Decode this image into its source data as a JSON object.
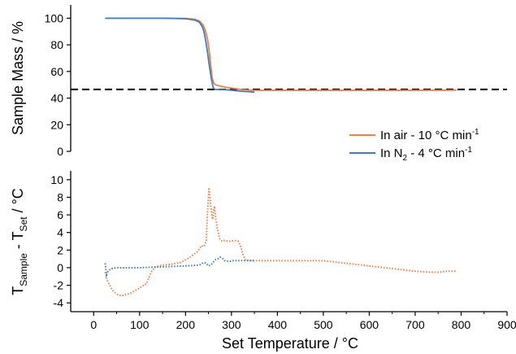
{
  "colors": {
    "air": "#f07f48",
    "n2": "#3f7fbd",
    "reference_line": "#000000",
    "axis": "#000000"
  },
  "chart_data": [
    {
      "type": "line",
      "ylabel": "Sample Mass / %",
      "ylim": [
        0,
        110
      ],
      "xlim": [
        -50,
        900
      ],
      "yticks": [
        "0",
        "20",
        "40",
        "60",
        "80",
        "100"
      ],
      "legend_position": "lower-right",
      "reference_line": {
        "y": 46.5,
        "style": "dashed"
      },
      "series": [
        {
          "key": "air",
          "name": "In air - 10 °C min",
          "name_sup": "-1",
          "style": "solid",
          "x": [
            25,
            100,
            150,
            200,
            220,
            230,
            238,
            243,
            248,
            252,
            255,
            258,
            262,
            266,
            270,
            290,
            320,
            350,
            400,
            500,
            600,
            700,
            790
          ],
          "y": [
            100,
            100,
            100,
            99.8,
            99.2,
            98,
            95,
            91,
            84,
            74,
            64,
            55,
            51,
            50,
            49.5,
            48,
            46.5,
            45.8,
            45.8,
            45.8,
            45.8,
            45.8,
            45.9
          ]
        },
        {
          "key": "n2",
          "name_parts": [
            "In N",
            "2",
            " - 4 °C min"
          ],
          "name_sup": "-1",
          "style": "solid",
          "x": [
            25,
            100,
            150,
            200,
            220,
            230,
            236,
            240,
            244,
            248,
            252,
            256,
            260,
            264,
            268,
            290,
            320,
            350
          ],
          "y": [
            100,
            100,
            100,
            99.6,
            98.6,
            97,
            94,
            90,
            83,
            74,
            64,
            55,
            48,
            46.5,
            46.5,
            46.2,
            45.2,
            44.5
          ]
        }
      ]
    },
    {
      "type": "line",
      "ylabel_parts": [
        "T",
        "Sample",
        " - T",
        "Set",
        " / °C"
      ],
      "xlabel": "Set Temperature / °C",
      "ylim": [
        -5,
        11
      ],
      "xlim": [
        -50,
        900
      ],
      "yticks": [
        "-4",
        "-2",
        "0",
        "2",
        "4",
        "6",
        "8",
        "10"
      ],
      "xticks": [
        "0",
        "100",
        "200",
        "300",
        "400",
        "500",
        "600",
        "700",
        "800",
        "900"
      ],
      "series": [
        {
          "key": "air",
          "style": "dotted",
          "x": [
            25,
            30,
            40,
            50,
            60,
            80,
            100,
            115,
            125,
            135,
            150,
            170,
            190,
            210,
            225,
            235,
            240,
            245,
            248,
            251,
            254,
            257,
            259,
            261,
            263,
            266,
            269,
            272,
            275,
            280,
            285,
            295,
            305,
            315,
            320,
            325,
            330,
            340,
            360,
            400,
            450,
            500,
            550,
            600,
            650,
            700,
            730,
            750,
            770,
            790
          ],
          "y": [
            -0.5,
            -1.5,
            -2.5,
            -3.0,
            -3.2,
            -2.9,
            -2.3,
            -1.8,
            -0.5,
            0.1,
            0.3,
            0.4,
            0.6,
            1.2,
            1.8,
            2.5,
            2.4,
            3.0,
            6.5,
            9.1,
            7.5,
            6.0,
            5.5,
            6.5,
            7.0,
            5.5,
            4.5,
            3.8,
            3.2,
            3.0,
            3.1,
            3.0,
            3.1,
            3.0,
            2.4,
            1.5,
            0.9,
            0.8,
            0.8,
            0.8,
            0.8,
            0.8,
            0.5,
            0.2,
            -0.1,
            -0.4,
            -0.5,
            -0.5,
            -0.4,
            -0.4
          ]
        },
        {
          "key": "n2",
          "style": "dotted",
          "x": [
            25,
            28,
            32,
            40,
            50,
            60,
            80,
            100,
            150,
            200,
            230,
            240,
            245,
            250,
            255,
            260,
            265,
            270,
            275,
            280,
            285,
            295,
            305,
            320,
            340,
            350
          ],
          "y": [
            0.5,
            -0.8,
            -0.3,
            -0.1,
            0.0,
            0.0,
            0.0,
            0.0,
            0.1,
            0.2,
            0.3,
            0.6,
            0.5,
            0.2,
            0.3,
            0.6,
            0.9,
            1.0,
            1.2,
            1.1,
            0.8,
            0.7,
            0.8,
            0.8,
            0.8,
            0.8
          ]
        }
      ]
    }
  ]
}
